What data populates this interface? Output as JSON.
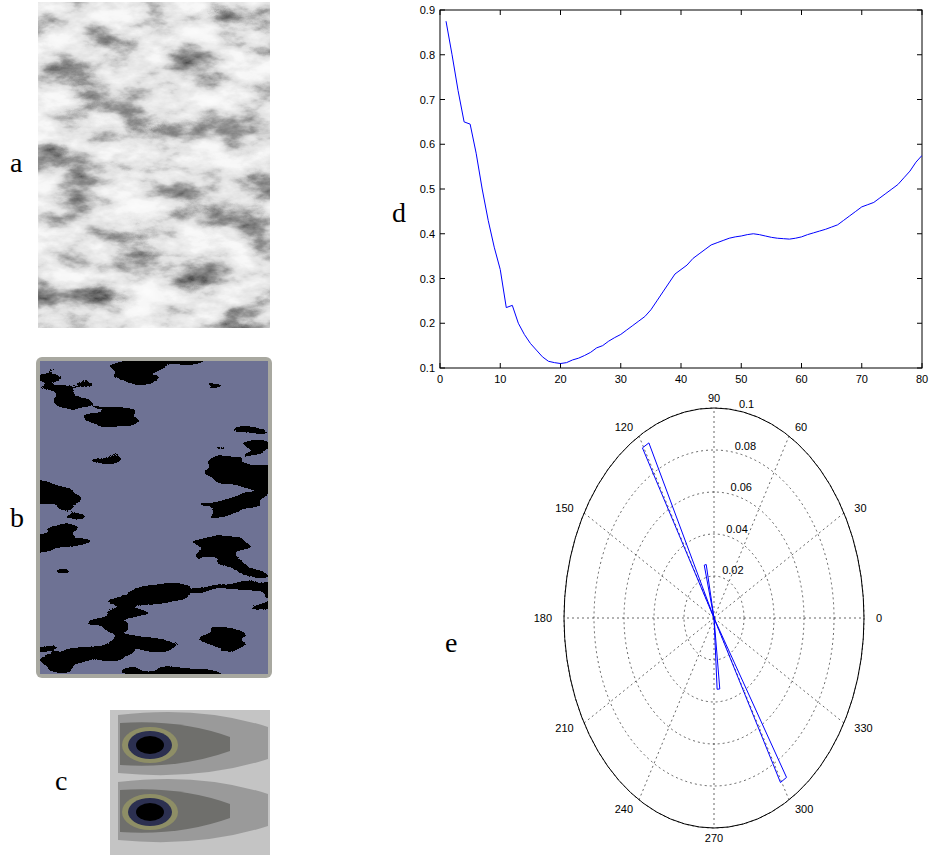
{
  "images": [
    {
      "label": "a"
    },
    {
      "label": "b"
    },
    {
      "label": "c"
    }
  ],
  "chart_data": [
    {
      "label": "d",
      "type": "line",
      "color": "#0000ff",
      "x": [
        1,
        2,
        3,
        4,
        5,
        6,
        7,
        8,
        9,
        10,
        11,
        12,
        13,
        14,
        15,
        16,
        17,
        18,
        19,
        20,
        21,
        22,
        23,
        24,
        25,
        26,
        27,
        28,
        29,
        30,
        31,
        32,
        33,
        34,
        35,
        36,
        37,
        38,
        39,
        40,
        41,
        42,
        43,
        44,
        45,
        46,
        47,
        48,
        49,
        50,
        51,
        52,
        53,
        54,
        55,
        56,
        57,
        58,
        59,
        60,
        61,
        62,
        63,
        64,
        65,
        66,
        67,
        68,
        69,
        70,
        71,
        72,
        73,
        74,
        75,
        76,
        77,
        78,
        79,
        80
      ],
      "values": [
        0.875,
        0.8,
        0.72,
        0.65,
        0.645,
        0.58,
        0.5,
        0.43,
        0.37,
        0.32,
        0.235,
        0.24,
        0.2,
        0.175,
        0.155,
        0.14,
        0.125,
        0.115,
        0.112,
        0.11,
        0.112,
        0.118,
        0.122,
        0.128,
        0.135,
        0.145,
        0.15,
        0.16,
        0.168,
        0.175,
        0.185,
        0.195,
        0.205,
        0.215,
        0.23,
        0.25,
        0.27,
        0.29,
        0.31,
        0.32,
        0.33,
        0.345,
        0.355,
        0.365,
        0.375,
        0.38,
        0.385,
        0.39,
        0.393,
        0.395,
        0.398,
        0.4,
        0.398,
        0.395,
        0.392,
        0.39,
        0.389,
        0.388,
        0.39,
        0.393,
        0.398,
        0.402,
        0.406,
        0.41,
        0.415,
        0.42,
        0.43,
        0.44,
        0.45,
        0.46,
        0.465,
        0.47,
        0.48,
        0.49,
        0.5,
        0.51,
        0.525,
        0.54,
        0.56,
        0.575
      ],
      "xlim": [
        0,
        80
      ],
      "xticks": [
        0,
        10,
        20,
        30,
        40,
        50,
        60,
        70,
        80
      ],
      "ylim": [
        0.1,
        0.9
      ],
      "yticks": [
        0.1,
        0.2,
        0.3,
        0.4,
        0.5,
        0.6,
        0.7,
        0.8,
        0.9
      ]
    },
    {
      "label": "e",
      "type": "polar_bar",
      "color": "#0000ff",
      "theta": [
        103,
        119,
        275,
        301
      ],
      "values": [
        0.026,
        0.094,
        0.034,
        0.09
      ],
      "rlim": [
        0,
        0.1
      ],
      "rticks": [
        0.02,
        0.04,
        0.06,
        0.08,
        0.1
      ],
      "thetaticks": [
        0,
        30,
        60,
        90,
        120,
        150,
        180,
        210,
        240,
        270,
        300,
        330
      ]
    }
  ]
}
